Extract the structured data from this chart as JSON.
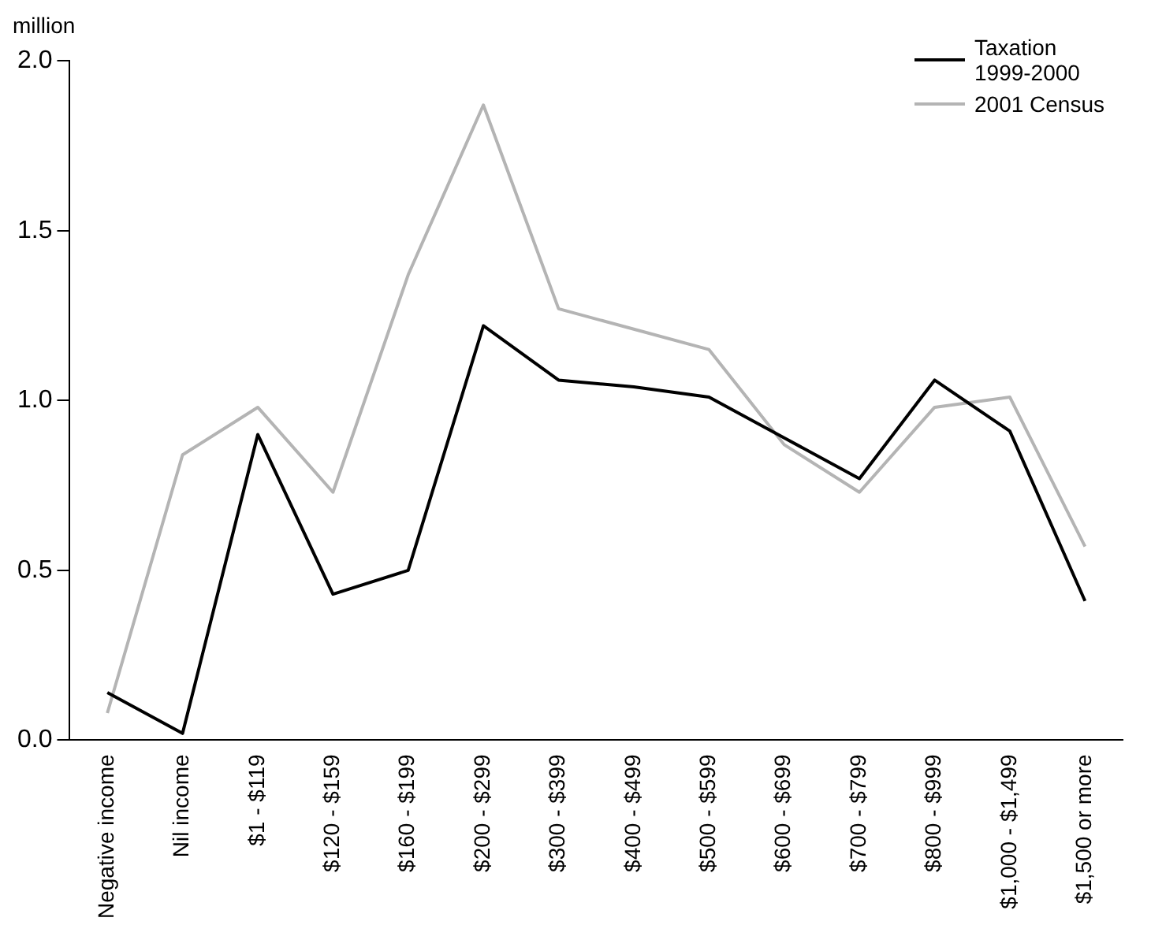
{
  "chart_data": {
    "type": "line",
    "ylabel": "million",
    "categories": [
      "Negative income",
      "Nil income",
      "$1 - $119",
      "$120 - $159",
      "$160 - $199",
      "$200 - $299",
      "$300 - $399",
      "$400 - $499",
      "$500 - $599",
      "$600 - $699",
      "$700 - $799",
      "$800 - $999",
      "$1,000 - $1,499",
      "$1,500 or more"
    ],
    "series": [
      {
        "name": "Taxation 1999-2000",
        "color": "#000000",
        "values": [
          0.14,
          0.02,
          0.9,
          0.43,
          0.5,
          1.22,
          1.06,
          1.04,
          1.01,
          0.89,
          0.77,
          1.06,
          0.91,
          0.41
        ]
      },
      {
        "name": "2001 Census",
        "color": "#b4b4b4",
        "values": [
          0.08,
          0.84,
          0.98,
          0.73,
          1.37,
          1.87,
          1.27,
          1.21,
          1.15,
          0.87,
          0.73,
          0.98,
          1.01,
          0.57
        ]
      }
    ],
    "ylim": [
      0,
      2
    ],
    "yticks": [
      {
        "value": 0,
        "label": "0.0"
      },
      {
        "value": 0.5,
        "label": "0.5"
      },
      {
        "value": 1,
        "label": "1.0"
      },
      {
        "value": 1.5,
        "label": "1.5"
      },
      {
        "value": 2,
        "label": "2.0"
      }
    ],
    "grid": false,
    "legend": "top right",
    "marker": "none",
    "line_style": "solid"
  }
}
